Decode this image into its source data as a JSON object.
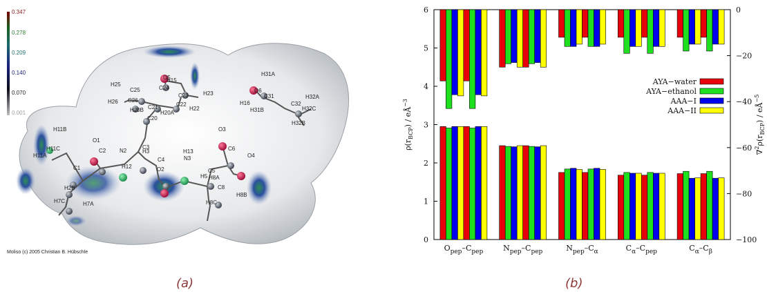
{
  "panel_a": {
    "caption": "(a)",
    "credit": "Moliso (c) 2005 Christian B. Hübschle",
    "colorbar": {
      "labels": [
        "0.347",
        "0.278",
        "0.209",
        "0.140",
        "0.070",
        "0.001"
      ],
      "label_colors": [
        "#8b1a1a",
        "#2e7d32",
        "#1f6f6f",
        "#1a237e",
        "#222222",
        "#9e9e9e"
      ]
    },
    "atoms": [
      "H25",
      "C24",
      "O5",
      "H15",
      "C25",
      "C23",
      "H23",
      "C26",
      "C21",
      "C22",
      "H26",
      "H20B",
      "H22",
      "H20A",
      "C20",
      "O6",
      "H31A",
      "C31",
      "H16",
      "H31B",
      "H32A",
      "C32",
      "H32C",
      "H32B",
      "H11B",
      "O1",
      "C2",
      "N2",
      "H12",
      "C3",
      "H3",
      "H13",
      "O3",
      "C6",
      "O4",
      "H11C",
      "H11A",
      "C1",
      "C4",
      "O2",
      "N3",
      "C5",
      "H5",
      "H8A",
      "C8",
      "H2B",
      "H7C",
      "H7A",
      "H8C",
      "H8B"
    ]
  },
  "panel_b": {
    "caption": "(b)"
  },
  "chart_data": {
    "type": "bar",
    "categories": [
      "O_pep–C_pep",
      "N_pep–C_pep",
      "N_pep–C_α",
      "C_α–C_pep",
      "C_α–C_β"
    ],
    "category_parts": [
      [
        "O",
        "pep",
        "–C",
        "pep"
      ],
      [
        "N",
        "pep",
        "–C",
        "pep"
      ],
      [
        "N",
        "pep",
        "–C",
        "α"
      ],
      [
        "C",
        "α",
        "–C",
        "pep"
      ],
      [
        "C",
        "α",
        "–C",
        "β"
      ]
    ],
    "series": [
      {
        "name": "AYA−water",
        "color": "#e8000b",
        "rho": [
          2.95,
          2.45,
          1.75,
          1.68,
          1.72
        ],
        "laplacian": [
          -31,
          -25,
          -12,
          -12,
          -12
        ]
      },
      {
        "name": "AYA−ethanol",
        "color": "#1fe01f",
        "rho": [
          2.91,
          2.43,
          1.84,
          1.75,
          1.78
        ],
        "laplacian": [
          -43,
          -23.5,
          -16,
          -19,
          -18
        ]
      },
      {
        "name": "AAA−I",
        "color": "#0000ee",
        "rho": [
          2.95,
          2.42,
          1.86,
          1.73,
          1.6
        ],
        "laplacian": [
          -37,
          -23,
          -16,
          -16,
          -15
        ]
      },
      {
        "name": "AAA−II",
        "color": "#ffff00",
        "rho": [
          2.95,
          2.45,
          1.83,
          1.73,
          1.61
        ],
        "laplacian": [
          -37.5,
          -25,
          -15,
          -16,
          -15
        ]
      }
    ],
    "y_left": {
      "label_parts": [
        "ρ(r",
        "BCP",
        ") / eÅ",
        "−3"
      ],
      "ylim": [
        0,
        6
      ],
      "ticks": [
        "0",
        "1",
        "2",
        "3",
        "4",
        "5",
        "6"
      ]
    },
    "y_right": {
      "label_parts": [
        "∇",
        "2",
        "ρ(r",
        "BCP",
        ") / eÅ",
        "−5"
      ],
      "ylim": [
        -100,
        0
      ],
      "ticks": [
        "0",
        "−20",
        "−40",
        "−60",
        "−80",
        "−100"
      ]
    },
    "legend_position": "right"
  }
}
